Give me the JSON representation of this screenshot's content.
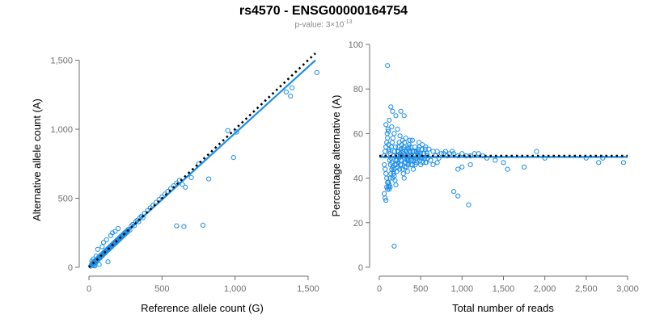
{
  "header": {
    "title": "rs4570 - ENSG00000164754",
    "subtitle_prefix": "p-value: 3×10",
    "subtitle_exp": "-13"
  },
  "chart_data": [
    {
      "type": "scatter",
      "xlabel": "Reference allele count (G)",
      "ylabel": "Alternative allele count (A)",
      "xlim": [
        0,
        1550
      ],
      "ylim": [
        0,
        1550
      ],
      "xticks": [
        0,
        500,
        1000,
        1500
      ],
      "yticks": [
        0,
        500,
        1000,
        1500
      ],
      "xtick_labels": [
        "0",
        "500",
        "1,000",
        "1,500"
      ],
      "ytick_labels": [
        "0",
        "500",
        "1,000",
        "1,500"
      ],
      "point_color": "#1e8fe6",
      "fit_line": {
        "x": [
          0,
          1550
        ],
        "y": [
          10,
          1500
        ],
        "color": "#1e8fe6"
      },
      "reference_line": {
        "x": [
          0,
          1550
        ],
        "y": [
          0,
          1550
        ],
        "color": "#000000",
        "style": "dotted"
      },
      "points": [
        [
          12,
          8
        ],
        [
          18,
          20
        ],
        [
          22,
          15
        ],
        [
          25,
          30
        ],
        [
          28,
          22
        ],
        [
          30,
          35
        ],
        [
          32,
          12
        ],
        [
          35,
          40
        ],
        [
          38,
          28
        ],
        [
          40,
          45
        ],
        [
          42,
          33
        ],
        [
          45,
          50
        ],
        [
          48,
          38
        ],
        [
          50,
          55
        ],
        [
          52,
          44
        ],
        [
          55,
          48
        ],
        [
          58,
          60
        ],
        [
          60,
          52
        ],
        [
          62,
          58
        ],
        [
          65,
          70
        ],
        [
          68,
          62
        ],
        [
          70,
          75
        ],
        [
          72,
          66
        ],
        [
          75,
          80
        ],
        [
          78,
          70
        ],
        [
          80,
          85
        ],
        [
          82,
          78
        ],
        [
          85,
          90
        ],
        [
          88,
          82
        ],
        [
          90,
          95
        ],
        [
          92,
          88
        ],
        [
          95,
          100
        ],
        [
          98,
          92
        ],
        [
          100,
          105
        ],
        [
          102,
          98
        ],
        [
          105,
          110
        ],
        [
          108,
          102
        ],
        [
          110,
          115
        ],
        [
          112,
          108
        ],
        [
          115,
          120
        ],
        [
          118,
          112
        ],
        [
          120,
          125
        ],
        [
          122,
          118
        ],
        [
          125,
          130
        ],
        [
          128,
          122
        ],
        [
          130,
          135
        ],
        [
          132,
          128
        ],
        [
          135,
          140
        ],
        [
          138,
          132
        ],
        [
          140,
          145
        ],
        [
          142,
          138
        ],
        [
          145,
          150
        ],
        [
          148,
          142
        ],
        [
          150,
          155
        ],
        [
          152,
          148
        ],
        [
          155,
          160
        ],
        [
          158,
          152
        ],
        [
          160,
          165
        ],
        [
          162,
          158
        ],
        [
          165,
          170
        ],
        [
          168,
          162
        ],
        [
          170,
          175
        ],
        [
          172,
          168
        ],
        [
          175,
          180
        ],
        [
          178,
          172
        ],
        [
          180,
          185
        ],
        [
          182,
          178
        ],
        [
          185,
          190
        ],
        [
          188,
          182
        ],
        [
          190,
          195
        ],
        [
          192,
          188
        ],
        [
          195,
          200
        ],
        [
          198,
          192
        ],
        [
          200,
          205
        ],
        [
          205,
          198
        ],
        [
          210,
          215
        ],
        [
          215,
          208
        ],
        [
          220,
          225
        ],
        [
          225,
          218
        ],
        [
          230,
          235
        ],
        [
          235,
          228
        ],
        [
          240,
          245
        ],
        [
          245,
          238
        ],
        [
          250,
          255
        ],
        [
          255,
          248
        ],
        [
          260,
          265
        ],
        [
          265,
          258
        ],
        [
          270,
          275
        ],
        [
          280,
          270
        ],
        [
          290,
          300
        ],
        [
          300,
          310
        ],
        [
          310,
          300
        ],
        [
          320,
          330
        ],
        [
          330,
          340
        ],
        [
          340,
          330
        ],
        [
          350,
          360
        ],
        [
          360,
          370
        ],
        [
          370,
          360
        ],
        [
          380,
          390
        ],
        [
          400,
          410
        ],
        [
          420,
          430
        ],
        [
          440,
          450
        ],
        [
          460,
          470
        ],
        [
          480,
          490
        ],
        [
          500,
          510
        ],
        [
          520,
          530
        ],
        [
          540,
          550
        ],
        [
          560,
          570
        ],
        [
          580,
          590
        ],
        [
          600,
          610
        ],
        [
          620,
          630
        ],
        [
          640,
          600
        ],
        [
          660,
          580
        ],
        [
          700,
          650
        ],
        [
          600,
          300
        ],
        [
          650,
          295
        ],
        [
          780,
          305
        ],
        [
          820,
          640
        ],
        [
          750,
          750
        ],
        [
          990,
          795
        ],
        [
          950,
          990
        ],
        [
          1010,
          980
        ],
        [
          1350,
          1270
        ],
        [
          1380,
          1240
        ],
        [
          1390,
          1300
        ],
        [
          1560,
          1410
        ],
        [
          100,
          180
        ],
        [
          120,
          200
        ],
        [
          60,
          130
        ],
        [
          150,
          230
        ],
        [
          50,
          80
        ],
        [
          70,
          20
        ],
        [
          160,
          250
        ],
        [
          90,
          150
        ],
        [
          180,
          260
        ],
        [
          200,
          280
        ],
        [
          130,
          40
        ],
        [
          40,
          10
        ],
        [
          30,
          60
        ],
        [
          20,
          45
        ]
      ]
    },
    {
      "type": "scatter",
      "xlabel": "Total number of reads",
      "ylabel": "Percentage alternative (A)",
      "xlim": [
        0,
        3000
      ],
      "ylim": [
        0,
        100
      ],
      "xticks": [
        0,
        500,
        1000,
        1500,
        2000,
        2500,
        3000
      ],
      "yticks": [
        0,
        20,
        40,
        60,
        80,
        100
      ],
      "xtick_labels": [
        "0",
        "500",
        "1,000",
        "1,500",
        "2,000",
        "2,500",
        "3,000"
      ],
      "ytick_labels": [
        "0",
        "20",
        "40",
        "60",
        "80",
        "100"
      ],
      "point_color": "#1e8fe6",
      "fit_line": {
        "x": [
          0,
          3000
        ],
        "y": [
          49.5,
          49.5
        ],
        "color": "#1e8fe6"
      },
      "reference_line": {
        "x": [
          0,
          3000
        ],
        "y": [
          50,
          50
        ],
        "color": "#000000",
        "style": "dotted"
      },
      "points": [
        [
          100,
          90.5
        ],
        [
          180,
          9.5
        ],
        [
          140,
          72
        ],
        [
          160,
          70
        ],
        [
          120,
          66
        ],
        [
          200,
          68
        ],
        [
          260,
          70
        ],
        [
          300,
          68
        ],
        [
          80,
          64
        ],
        [
          150,
          63
        ],
        [
          220,
          62
        ],
        [
          110,
          61
        ],
        [
          180,
          60
        ],
        [
          250,
          59
        ],
        [
          320,
          58
        ],
        [
          400,
          57
        ],
        [
          480,
          56
        ],
        [
          520,
          55
        ],
        [
          560,
          54
        ],
        [
          600,
          53
        ],
        [
          650,
          52
        ],
        [
          700,
          52
        ],
        [
          750,
          51
        ],
        [
          800,
          52
        ],
        [
          850,
          51
        ],
        [
          900,
          51
        ],
        [
          950,
          50
        ],
        [
          1000,
          51
        ],
        [
          1050,
          50
        ],
        [
          1100,
          50
        ],
        [
          1150,
          51
        ],
        [
          1200,
          51
        ],
        [
          1250,
          50
        ],
        [
          1300,
          49
        ],
        [
          1400,
          48
        ],
        [
          1500,
          47
        ],
        [
          1550,
          44
        ],
        [
          1750,
          45
        ],
        [
          1900,
          52
        ],
        [
          2000,
          49
        ],
        [
          2500,
          49
        ],
        [
          2650,
          47
        ],
        [
          2700,
          49
        ],
        [
          2950,
          47
        ],
        [
          1100,
          46
        ],
        [
          1000,
          45
        ],
        [
          950,
          44
        ],
        [
          900,
          34
        ],
        [
          950,
          32
        ],
        [
          1080,
          28
        ],
        [
          60,
          46
        ],
        [
          70,
          44
        ],
        [
          80,
          42
        ],
        [
          90,
          40
        ],
        [
          100,
          38
        ],
        [
          110,
          36
        ],
        [
          120,
          35
        ],
        [
          130,
          40
        ],
        [
          140,
          42
        ],
        [
          150,
          44
        ],
        [
          60,
          33
        ],
        [
          70,
          31
        ],
        [
          80,
          30
        ],
        [
          90,
          36
        ],
        [
          100,
          35
        ],
        [
          110,
          38
        ],
        [
          120,
          37
        ],
        [
          130,
          36
        ],
        [
          160,
          40
        ],
        [
          170,
          42
        ],
        [
          180,
          44
        ],
        [
          190,
          46
        ],
        [
          200,
          48
        ],
        [
          210,
          50
        ],
        [
          220,
          52
        ],
        [
          230,
          54
        ],
        [
          240,
          56
        ],
        [
          250,
          50
        ],
        [
          260,
          48
        ],
        [
          270,
          46
        ],
        [
          280,
          44
        ],
        [
          290,
          42
        ],
        [
          300,
          40
        ],
        [
          310,
          45
        ],
        [
          320,
          47
        ],
        [
          330,
          49
        ],
        [
          340,
          51
        ],
        [
          350,
          53
        ],
        [
          360,
          55
        ],
        [
          370,
          57
        ],
        [
          380,
          50
        ],
        [
          390,
          48
        ],
        [
          400,
          46
        ],
        [
          410,
          44
        ],
        [
          420,
          52
        ],
        [
          430,
          54
        ],
        [
          440,
          49
        ],
        [
          450,
          47
        ],
        [
          460,
          51
        ],
        [
          470,
          53
        ],
        [
          480,
          50
        ],
        [
          490,
          48
        ],
        [
          500,
          46
        ],
        [
          520,
          49
        ],
        [
          540,
          51
        ],
        [
          560,
          47
        ],
        [
          580,
          50
        ],
        [
          60,
          50
        ],
        [
          70,
          52
        ],
        [
          80,
          54
        ],
        [
          90,
          56
        ],
        [
          100,
          58
        ],
        [
          110,
          55
        ],
        [
          120,
          53
        ],
        [
          130,
          51
        ],
        [
          140,
          49
        ],
        [
          150,
          47
        ],
        [
          160,
          45
        ],
        [
          170,
          43
        ],
        [
          180,
          41
        ],
        [
          190,
          39
        ],
        [
          200,
          37
        ],
        [
          210,
          43
        ],
        [
          220,
          45
        ],
        [
          230,
          47
        ],
        [
          240,
          49
        ],
        [
          250,
          51
        ],
        [
          260,
          53
        ],
        [
          270,
          55
        ],
        [
          280,
          57
        ],
        [
          290,
          53
        ],
        [
          300,
          51
        ],
        [
          310,
          49
        ],
        [
          320,
          47
        ],
        [
          330,
          45
        ],
        [
          340,
          43
        ],
        [
          350,
          48
        ],
        [
          360,
          50
        ],
        [
          370,
          52
        ],
        [
          380,
          54
        ],
        [
          95,
          60
        ],
        [
          105,
          62
        ],
        [
          115,
          52
        ],
        [
          125,
          48
        ],
        [
          135,
          46
        ],
        [
          145,
          54
        ],
        [
          155,
          56
        ],
        [
          165,
          58
        ],
        [
          175,
          50
        ],
        [
          185,
          52
        ],
        [
          195,
          54
        ],
        [
          205,
          46
        ],
        [
          215,
          48
        ],
        [
          225,
          50
        ],
        [
          235,
          52
        ],
        [
          245,
          44
        ],
        [
          255,
          46
        ],
        [
          265,
          48
        ],
        [
          275,
          50
        ],
        [
          285,
          52
        ],
        [
          295,
          54
        ],
        [
          305,
          56
        ],
        [
          315,
          50
        ],
        [
          325,
          52
        ],
        [
          335,
          48
        ],
        [
          345,
          46
        ],
        [
          355,
          54
        ],
        [
          365,
          52
        ],
        [
          375,
          48
        ],
        [
          385,
          46
        ],
        [
          395,
          50
        ],
        [
          405,
          52
        ],
        [
          415,
          48
        ],
        [
          425,
          50
        ],
        [
          435,
          46
        ],
        [
          445,
          52
        ],
        [
          455,
          48
        ],
        [
          465,
          50
        ],
        [
          475,
          52
        ],
        [
          485,
          54
        ],
        [
          495,
          51
        ],
        [
          505,
          49
        ],
        [
          515,
          53
        ],
        [
          525,
          47
        ],
        [
          535,
          51
        ],
        [
          545,
          49
        ],
        [
          555,
          53
        ],
        [
          565,
          47
        ],
        [
          575,
          51
        ],
        [
          585,
          49
        ],
        [
          620,
          48
        ],
        [
          680,
          50
        ],
        [
          720,
          49
        ],
        [
          780,
          51
        ],
        [
          820,
          50
        ],
        [
          880,
          52
        ],
        [
          650,
          46
        ],
        [
          700,
          47
        ]
      ]
    }
  ]
}
